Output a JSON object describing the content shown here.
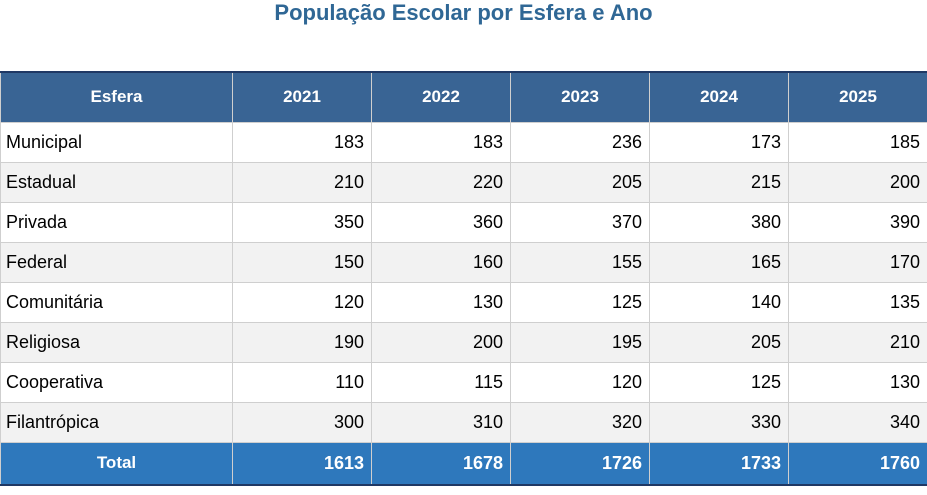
{
  "title": "População Escolar por Esfera e Ano",
  "colors": {
    "title": "#2F6795",
    "header_bg": "#396494",
    "header_text": "#FFFFFF",
    "total_bg": "#2E78BC",
    "total_text": "#FFFFFF",
    "row_bg": "#FFFFFF",
    "row_alt_bg": "#F2F2F2",
    "border_light": "#CFCFCF",
    "border_dark": "#1F3864",
    "body_text": "#000000"
  },
  "chart_data": {
    "type": "table",
    "title": "População Escolar por Esfera e Ano",
    "columns": [
      "Esfera",
      "2021",
      "2022",
      "2023",
      "2024",
      "2025"
    ],
    "rows": [
      {
        "label": "Municipal",
        "values": [
          183,
          183,
          236,
          173,
          185
        ]
      },
      {
        "label": "Estadual",
        "values": [
          210,
          220,
          205,
          215,
          200
        ]
      },
      {
        "label": "Privada",
        "values": [
          350,
          360,
          370,
          380,
          390
        ]
      },
      {
        "label": "Federal",
        "values": [
          150,
          160,
          155,
          165,
          170
        ]
      },
      {
        "label": "Comunitária",
        "values": [
          120,
          130,
          125,
          140,
          135
        ]
      },
      {
        "label": "Religiosa",
        "values": [
          190,
          200,
          195,
          205,
          210
        ]
      },
      {
        "label": "Cooperativa",
        "values": [
          110,
          115,
          120,
          125,
          130
        ]
      },
      {
        "label": "Filantrópica",
        "values": [
          300,
          310,
          320,
          330,
          340
        ]
      }
    ],
    "total": {
      "label": "Total",
      "values": [
        1613,
        1678,
        1726,
        1733,
        1760
      ]
    }
  }
}
